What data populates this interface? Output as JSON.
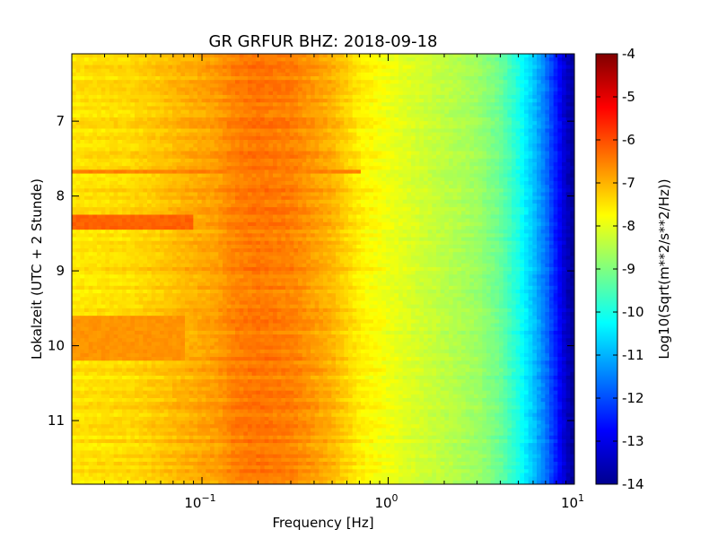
{
  "chart_data": {
    "type": "heatmap",
    "title": "GR GRFUR BHZ: 2018-09-18",
    "xlabel": "Frequency [Hz]",
    "ylabel": "Lokalzeit (UTC + 2 Stunde)",
    "x_scale": "log",
    "xlim": [
      0.02,
      10
    ],
    "ylim": [
      11.85,
      6.1
    ],
    "x_ticks": [
      {
        "value": 0.1,
        "base": "10",
        "exp": "−1"
      },
      {
        "value": 1,
        "base": "10",
        "exp": "0"
      },
      {
        "value": 10,
        "base": "10",
        "exp": "1"
      }
    ],
    "y_ticks": [
      {
        "value": 7,
        "label": "7"
      },
      {
        "value": 8,
        "label": "8"
      },
      {
        "value": 9,
        "label": "9"
      },
      {
        "value": 10,
        "label": "10"
      },
      {
        "value": 11,
        "label": "11"
      }
    ],
    "colorbar": {
      "label": "Log10(Sqrt(m**2/s**2/Hz))",
      "range": [
        -14,
        -4
      ],
      "colormap": "jet",
      "ticks": [
        "-4",
        "-5",
        "-6",
        "-7",
        "-8",
        "-9",
        "-10",
        "-11",
        "-12",
        "-13",
        "-14"
      ]
    },
    "spectrum_profile": {
      "frequency_hz": [
        0.02,
        0.04,
        0.06,
        0.08,
        0.12,
        0.15,
        0.2,
        0.3,
        0.5,
        0.7,
        1.0,
        1.5,
        2.0,
        3.0,
        4.0,
        5.0,
        6.0,
        7.0,
        8.0,
        9.0,
        10.0
      ],
      "log10_psd": [
        -7.5,
        -7.4,
        -7.2,
        -7.0,
        -6.8,
        -6.5,
        -6.4,
        -6.5,
        -7.0,
        -7.6,
        -7.9,
        -8.2,
        -8.4,
        -8.7,
        -9.2,
        -10.0,
        -10.8,
        -11.6,
        -12.5,
        -13.3,
        -13.8
      ]
    },
    "events": [
      {
        "time_start": 8.25,
        "time_end": 8.45,
        "freq_max_hz": 0.09,
        "log10_psd": -6.2
      },
      {
        "time_start": 9.6,
        "time_end": 10.2,
        "freq_max_hz": 0.08,
        "log10_psd": -6.7
      },
      {
        "time_start": 7.65,
        "time_end": 7.7,
        "freq_max_hz": 0.7,
        "log10_psd": -6.5
      }
    ]
  }
}
